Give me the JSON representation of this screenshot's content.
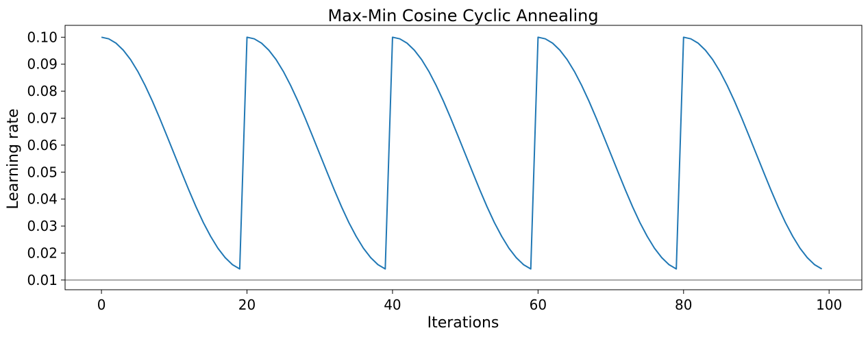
{
  "chart_data": {
    "type": "line",
    "title": "Max-Min Cosine Cyclic Annealing",
    "xlabel": "Iterations",
    "ylabel": "Learning rate",
    "xlim": [
      -5,
      104.5
    ],
    "ylim": [
      0.0064,
      0.1044
    ],
    "xticks": [
      0,
      20,
      40,
      60,
      80,
      100
    ],
    "xtick_labels": [
      "0",
      "20",
      "40",
      "60",
      "80",
      "100"
    ],
    "yticks": [
      0.01,
      0.02,
      0.03,
      0.04,
      0.05,
      0.06,
      0.07,
      0.08,
      0.09,
      0.1
    ],
    "ytick_labels": [
      "0.01",
      "0.02",
      "0.03",
      "0.04",
      "0.05",
      "0.06",
      "0.07",
      "0.08",
      "0.09",
      "0.10"
    ],
    "grid": false,
    "series": [
      {
        "color": "#1f77b4",
        "cycle_length": 20,
        "max_lr": 0.1,
        "min_lr": 0.01,
        "x": [
          0,
          1,
          2,
          3,
          4,
          5,
          6,
          7,
          8,
          9,
          10,
          11,
          12,
          13,
          14,
          15,
          16,
          17,
          18,
          19,
          20,
          21,
          22,
          23,
          24,
          25,
          26,
          27,
          28,
          29,
          30,
          31,
          32,
          33,
          34,
          35,
          36,
          37,
          38,
          39,
          40,
          41,
          42,
          43,
          44,
          45,
          46,
          47,
          48,
          49,
          50,
          51,
          52,
          53,
          54,
          55,
          56,
          57,
          58,
          59,
          60,
          61,
          62,
          63,
          64,
          65,
          66,
          67,
          68,
          69,
          70,
          71,
          72,
          73,
          74,
          75,
          76,
          77,
          78,
          79,
          80,
          81,
          82,
          83,
          84,
          85,
          86,
          87,
          88,
          89,
          90,
          91,
          92,
          93,
          94,
          95,
          96,
          97,
          98,
          99
        ],
        "y": [
          0.1,
          0.0994,
          0.0978,
          0.0952,
          0.0917,
          0.0873,
          0.0821,
          0.0763,
          0.07,
          0.0634,
          0.0567,
          0.05,
          0.0434,
          0.0371,
          0.0313,
          0.0262,
          0.0218,
          0.0183,
          0.0157,
          0.0141,
          0.1,
          0.0994,
          0.0978,
          0.0952,
          0.0917,
          0.0873,
          0.0821,
          0.0763,
          0.07,
          0.0634,
          0.0567,
          0.05,
          0.0434,
          0.0371,
          0.0313,
          0.0262,
          0.0218,
          0.0183,
          0.0157,
          0.0141,
          0.1,
          0.0994,
          0.0978,
          0.0952,
          0.0917,
          0.0873,
          0.0821,
          0.0763,
          0.07,
          0.0634,
          0.0567,
          0.05,
          0.0434,
          0.0371,
          0.0313,
          0.0262,
          0.0218,
          0.0183,
          0.0157,
          0.0141,
          0.1,
          0.0994,
          0.0978,
          0.0952,
          0.0917,
          0.0873,
          0.0821,
          0.0763,
          0.07,
          0.0634,
          0.0567,
          0.05,
          0.0434,
          0.0371,
          0.0313,
          0.0262,
          0.0218,
          0.0183,
          0.0157,
          0.0141,
          0.1,
          0.0994,
          0.0978,
          0.0952,
          0.0917,
          0.0873,
          0.0821,
          0.0763,
          0.07,
          0.0634,
          0.0567,
          0.05,
          0.0434,
          0.0371,
          0.0313,
          0.0262,
          0.0218,
          0.0183,
          0.0157,
          0.0141
        ]
      }
    ],
    "reference_lines": [
      {
        "orientation": "horizontal",
        "value": 0.01,
        "color": "#555555"
      }
    ]
  }
}
